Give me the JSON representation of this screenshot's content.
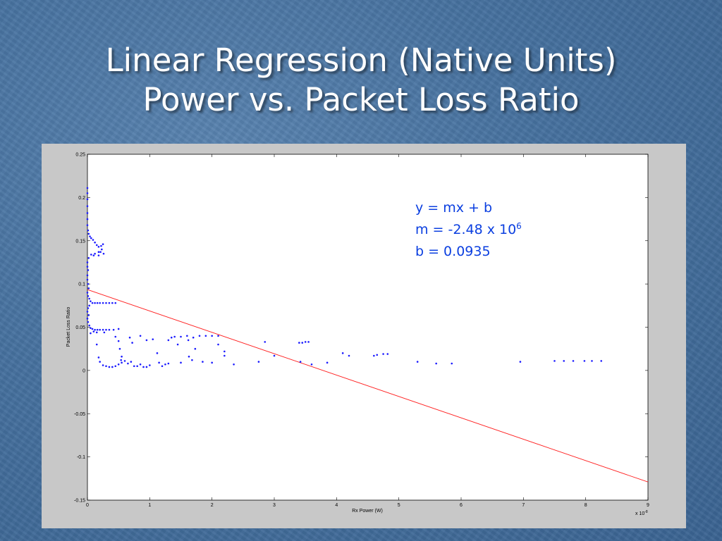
{
  "slide": {
    "title_line1": "Linear Regression (Native Units)",
    "title_line2": "Power vs. Packet Loss Ratio"
  },
  "colors": {
    "points": "#1a1aff",
    "fit_line": "#ff2020",
    "annotation": "#0b3fe0"
  },
  "chart_data": {
    "type": "scatter",
    "xlabel": "Rx Power (W)",
    "ylabel": "Packet Loss Ratio",
    "x_exponent_label": "x 10",
    "x_exponent": "-8",
    "xlim": [
      0,
      9
    ],
    "ylim": [
      -0.15,
      0.25
    ],
    "xticks": [
      0,
      1,
      2,
      3,
      4,
      5,
      6,
      7,
      8,
      9
    ],
    "xtick_labels": [
      "0",
      "1",
      "2",
      "3",
      "4",
      "5",
      "6",
      "7",
      "8",
      "9"
    ],
    "yticks": [
      -0.15,
      -0.1,
      -0.05,
      0,
      0.05,
      0.1,
      0.15,
      0.2,
      0.25
    ],
    "ytick_labels": [
      "-0.15",
      "-0.1",
      "-0.05",
      "0",
      "0.05",
      "0.1",
      "0.15",
      "0.2",
      "0.25"
    ],
    "grid": false,
    "annotations": {
      "line1": "y = mx + b",
      "line2": "m = -2.48 x 10",
      "line2_sup": "6",
      "line3": "b = 0.0935"
    },
    "fit_line": {
      "x": [
        0,
        9
      ],
      "y": [
        0.0935,
        -0.129
      ]
    },
    "points": [
      [
        0.0,
        0.211
      ],
      [
        0.0,
        0.205
      ],
      [
        0.0,
        0.198
      ],
      [
        0.0,
        0.19
      ],
      [
        0.0,
        0.182
      ],
      [
        0.0,
        0.175
      ],
      [
        0.0,
        0.168
      ],
      [
        0.01,
        0.162
      ],
      [
        0.02,
        0.158
      ],
      [
        0.04,
        0.155
      ],
      [
        0.06,
        0.153
      ],
      [
        0.09,
        0.151
      ],
      [
        0.12,
        0.148
      ],
      [
        0.15,
        0.145
      ],
      [
        0.18,
        0.143
      ],
      [
        0.22,
        0.144
      ],
      [
        0.25,
        0.146
      ],
      [
        0.23,
        0.14
      ],
      [
        0.18,
        0.137
      ],
      [
        0.12,
        0.135
      ],
      [
        0.06,
        0.134
      ],
      [
        0.1,
        0.133
      ],
      [
        0.18,
        0.133
      ],
      [
        0.26,
        0.135
      ],
      [
        0.21,
        0.137
      ],
      [
        0.02,
        0.13
      ],
      [
        0.0,
        0.125
      ],
      [
        0.0,
        0.12
      ],
      [
        0.01,
        0.116
      ],
      [
        0.0,
        0.11
      ],
      [
        0.0,
        0.105
      ],
      [
        0.01,
        0.1
      ],
      [
        0.02,
        0.095
      ],
      [
        0.0,
        0.09
      ],
      [
        0.01,
        0.086
      ],
      [
        0.03,
        0.083
      ],
      [
        0.05,
        0.08
      ],
      [
        0.08,
        0.078
      ],
      [
        0.12,
        0.078
      ],
      [
        0.16,
        0.078
      ],
      [
        0.2,
        0.078
      ],
      [
        0.25,
        0.078
      ],
      [
        0.3,
        0.078
      ],
      [
        0.35,
        0.078
      ],
      [
        0.4,
        0.078
      ],
      [
        0.45,
        0.078
      ],
      [
        0.03,
        0.075
      ],
      [
        0.01,
        0.072
      ],
      [
        0.0,
        0.068
      ],
      [
        0.02,
        0.064
      ],
      [
        0.0,
        0.06
      ],
      [
        0.01,
        0.056
      ],
      [
        0.03,
        0.052
      ],
      [
        0.05,
        0.049
      ],
      [
        0.08,
        0.048
      ],
      [
        0.12,
        0.047
      ],
      [
        0.16,
        0.047
      ],
      [
        0.2,
        0.047
      ],
      [
        0.25,
        0.047
      ],
      [
        0.3,
        0.047
      ],
      [
        0.35,
        0.047
      ],
      [
        0.42,
        0.047
      ],
      [
        0.5,
        0.048
      ],
      [
        0.1,
        0.045
      ],
      [
        0.05,
        0.043
      ],
      [
        0.15,
        0.044
      ],
      [
        0.27,
        0.044
      ],
      [
        0.45,
        0.039
      ],
      [
        0.5,
        0.034
      ],
      [
        0.52,
        0.025
      ],
      [
        0.55,
        0.016
      ],
      [
        0.54,
        0.012
      ],
      [
        0.15,
        0.03
      ],
      [
        0.18,
        0.015
      ],
      [
        0.2,
        0.01
      ],
      [
        0.25,
        0.006
      ],
      [
        0.3,
        0.005
      ],
      [
        0.35,
        0.004
      ],
      [
        0.4,
        0.004
      ],
      [
        0.45,
        0.005
      ],
      [
        0.5,
        0.007
      ],
      [
        0.55,
        0.009
      ],
      [
        0.6,
        0.011
      ],
      [
        0.65,
        0.008
      ],
      [
        0.7,
        0.01
      ],
      [
        0.75,
        0.005
      ],
      [
        0.8,
        0.005
      ],
      [
        0.85,
        0.007
      ],
      [
        0.9,
        0.004
      ],
      [
        0.95,
        0.004
      ],
      [
        1.0,
        0.006
      ],
      [
        1.15,
        0.009
      ],
      [
        1.2,
        0.005
      ],
      [
        1.25,
        0.007
      ],
      [
        1.3,
        0.008
      ],
      [
        0.68,
        0.038
      ],
      [
        0.72,
        0.032
      ],
      [
        0.85,
        0.04
      ],
      [
        0.95,
        0.035
      ],
      [
        1.05,
        0.036
      ],
      [
        1.12,
        0.02
      ],
      [
        1.3,
        0.035
      ],
      [
        1.35,
        0.038
      ],
      [
        1.4,
        0.039
      ],
      [
        1.45,
        0.03
      ],
      [
        1.5,
        0.039
      ],
      [
        1.6,
        0.04
      ],
      [
        1.62,
        0.035
      ],
      [
        1.7,
        0.038
      ],
      [
        1.73,
        0.025
      ],
      [
        1.8,
        0.04
      ],
      [
        1.9,
        0.04
      ],
      [
        2.0,
        0.04
      ],
      [
        2.1,
        0.04
      ],
      [
        1.63,
        0.016
      ],
      [
        1.68,
        0.012
      ],
      [
        1.5,
        0.009
      ],
      [
        1.85,
        0.01
      ],
      [
        2.0,
        0.009
      ],
      [
        2.1,
        0.03
      ],
      [
        2.2,
        0.022
      ],
      [
        2.2,
        0.017
      ],
      [
        2.35,
        0.007
      ],
      [
        2.75,
        0.01
      ],
      [
        2.85,
        0.033
      ],
      [
        3.0,
        0.017
      ],
      [
        3.4,
        0.032
      ],
      [
        3.45,
        0.032
      ],
      [
        3.5,
        0.033
      ],
      [
        3.55,
        0.033
      ],
      [
        3.42,
        0.01
      ],
      [
        3.6,
        0.007
      ],
      [
        3.85,
        0.009
      ],
      [
        4.1,
        0.02
      ],
      [
        4.2,
        0.017
      ],
      [
        4.6,
        0.017
      ],
      [
        4.65,
        0.018
      ],
      [
        4.75,
        0.019
      ],
      [
        4.82,
        0.019
      ],
      [
        5.3,
        0.01
      ],
      [
        5.6,
        0.008
      ],
      [
        5.85,
        0.008
      ],
      [
        6.95,
        0.01
      ],
      [
        7.5,
        0.011
      ],
      [
        7.65,
        0.011
      ],
      [
        7.8,
        0.011
      ],
      [
        7.98,
        0.011
      ],
      [
        8.1,
        0.011
      ],
      [
        8.25,
        0.011
      ]
    ]
  }
}
